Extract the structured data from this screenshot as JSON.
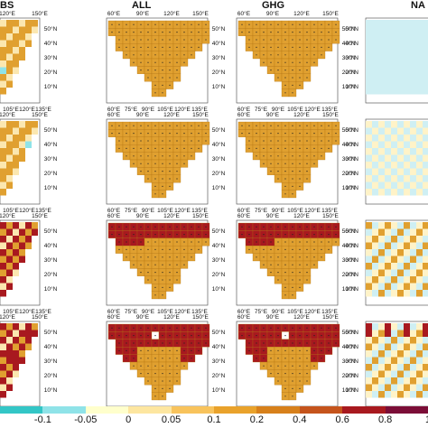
{
  "columns": [
    {
      "title": "BS"
    },
    {
      "title": "ALL"
    },
    {
      "title": "GHG"
    },
    {
      "title": "NA"
    }
  ],
  "lon_labels_obs": [
    "120°E",
    "150°E"
  ],
  "lon_labels_obs_bottom": [
    "105°E",
    "120°E",
    "135°E"
  ],
  "lon_labels_top": [
    "60°E",
    "90°E",
    "120°E",
    "150°E"
  ],
  "lon_labels_bottom": [
    "60°E",
    "75°E",
    "90°E",
    "105°E",
    "120°E",
    "135°E"
  ],
  "lat_labels": [
    "50°N",
    "40°N",
    "30°N",
    "20°N",
    "10°N"
  ],
  "colorbar": {
    "colors": [
      "#33c6c6",
      "#8fe3e8",
      "#ffffcc",
      "#fde6a0",
      "#f8c35c",
      "#e9a22b",
      "#d7801b",
      "#c5541c",
      "#a8191f",
      "#7b0d37"
    ],
    "labels": [
      "-0.1",
      "-0.05",
      "0",
      "0.05",
      "0.1",
      "0.2",
      "0.4",
      "0.6",
      "0.8",
      "1"
    ]
  },
  "palette": {
    "orange": "#e0a030",
    "light": "#fbe7b0",
    "red": "#a8191f",
    "cyan": "#8fe3e8",
    "lightblue": "#cfeff3"
  }
}
